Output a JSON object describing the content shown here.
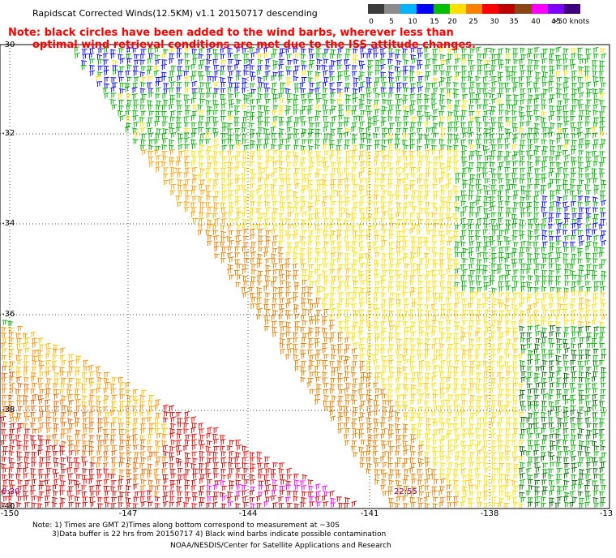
{
  "title": "Rapidscat Corrected Winds(12.5KM) v1.1 20150717 descending",
  "note": {
    "line1": "Note: black circles have been added to the wind barbs, wherever less than",
    "line2": "optimal wind retrieval conditions are met due to the ISS attitude changes."
  },
  "legend": {
    "labels": [
      "0",
      "5",
      "10",
      "15",
      "20",
      "25",
      "30",
      "35",
      "40",
      "45",
      ">50 knots"
    ],
    "colors": [
      "#3c3c3c",
      "#8c8c8c",
      "#00b4ff",
      "#0000ff",
      "#00c000",
      "#ffe000",
      "#ff8000",
      "#ff0000",
      "#c00000",
      "#8b4513",
      "#ff00ff",
      "#8000ff",
      "#400080"
    ]
  },
  "map": {
    "lat_labels": [
      "-30",
      "-32",
      "-34",
      "-36",
      "-38",
      "-40"
    ],
    "lon_labels": [
      "-150",
      "-147",
      "-144",
      "-141",
      "-138",
      "-13"
    ],
    "time_labels": [
      "0:30",
      "22:55"
    ]
  },
  "footer": {
    "line1": "Note: 1) Times are GMT 2)Times along bottom correspond to measurement at ~30S",
    "line2": "3)Data buffer is 22 hrs from 20150717 4) Black wind barbs indicate possible contamination",
    "line3": "NOAA/NESDIS/Center for Satellite Applications and Research"
  }
}
